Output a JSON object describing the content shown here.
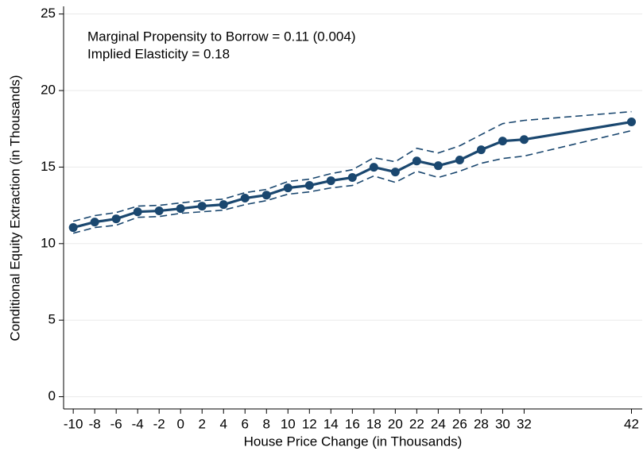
{
  "chart_data": {
    "type": "line",
    "annotations": [
      "Marginal Propensity to Borrow = 0.11 (0.004)",
      "Implied Elasticity = 0.18"
    ],
    "x_label": "House Price Change (in Thousands)",
    "y_label": "Conditional Equity Extraction (in Thousands)",
    "x": [
      -10,
      -8,
      -6,
      -4,
      -2,
      0,
      2,
      4,
      6,
      8,
      10,
      12,
      14,
      16,
      18,
      20,
      22,
      24,
      26,
      28,
      30,
      32,
      42
    ],
    "series": [
      {
        "color": "#1a476f",
        "dashed": false,
        "markers": true,
        "values": [
          11.05,
          11.41,
          11.62,
          12.08,
          12.14,
          12.29,
          12.45,
          12.55,
          12.97,
          13.17,
          13.64,
          13.8,
          14.11,
          14.32,
          14.99,
          14.68,
          15.4,
          15.09,
          15.46,
          16.13,
          16.7,
          16.8,
          17.95
        ]
      },
      {
        "color": "#1a476f",
        "dashed": true,
        "markers": false,
        "values": [
          11.46,
          11.83,
          12.03,
          12.45,
          12.5,
          12.66,
          12.81,
          12.91,
          13.33,
          13.54,
          14.06,
          14.21,
          14.57,
          14.83,
          15.61,
          15.35,
          16.23,
          15.92,
          16.39,
          17.12,
          17.84,
          18.05,
          18.62
        ]
      },
      {
        "color": "#1a476f",
        "dashed": true,
        "markers": false,
        "values": [
          10.68,
          11.05,
          11.2,
          11.72,
          11.77,
          11.98,
          12.08,
          12.19,
          12.55,
          12.81,
          13.23,
          13.38,
          13.64,
          13.8,
          14.42,
          14.0,
          14.73,
          14.32,
          14.73,
          15.25,
          15.56,
          15.72,
          17.38
        ]
      }
    ],
    "xlim": [
      -10.9,
      43
    ],
    "ylim": [
      -0.8,
      25.5
    ],
    "xticks": [
      -10,
      -8,
      -6,
      -4,
      -2,
      0,
      2,
      4,
      6,
      8,
      10,
      12,
      14,
      16,
      18,
      20,
      22,
      24,
      26,
      28,
      30,
      32,
      42
    ],
    "yticks": [
      0,
      5,
      10,
      15,
      20,
      25
    ],
    "grid": true
  }
}
